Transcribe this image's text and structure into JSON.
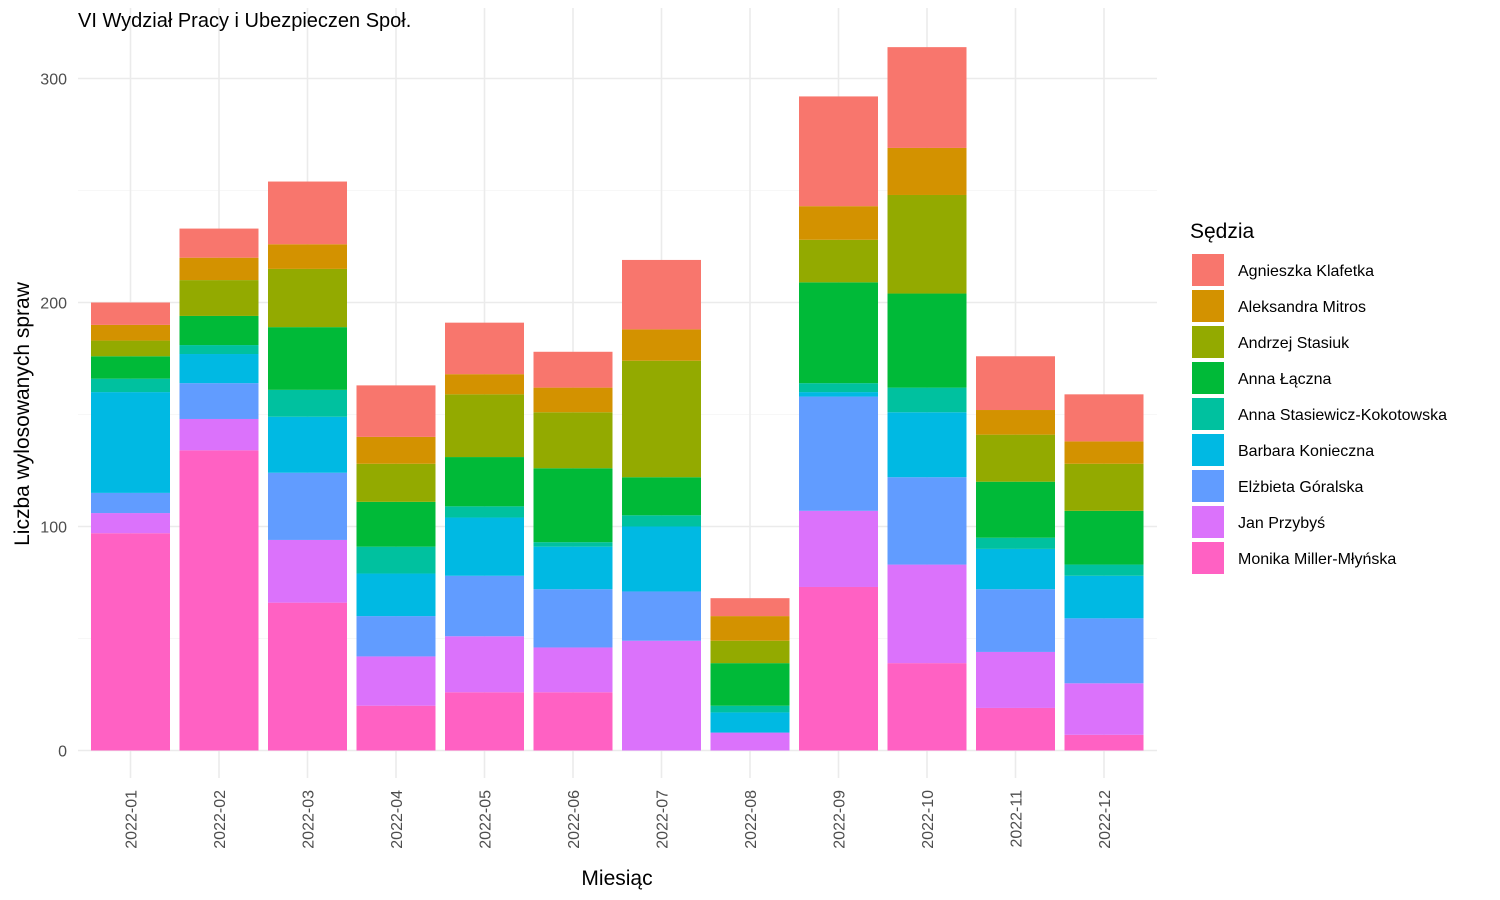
{
  "chart_data": {
    "type": "bar",
    "stacked": true,
    "title": "VI Wydział Pracy i Ubezpieczen Społ.",
    "xlabel": "Miesiąc",
    "ylabel": "Liczba wylosowanych spraw",
    "ylim": [
      0,
      320
    ],
    "yticks": [
      0,
      100,
      200,
      300
    ],
    "grid": true,
    "legend": {
      "title": "Sędzia",
      "position": "right"
    },
    "categories": [
      "2022-01",
      "2022-02",
      "2022-03",
      "2022-04",
      "2022-05",
      "2022-06",
      "2022-07",
      "2022-08",
      "2022-09",
      "2022-10",
      "2022-11",
      "2022-12"
    ],
    "series": [
      {
        "name": "Agnieszka Klafetka",
        "color": "#F8766D",
        "values": [
          10,
          13,
          28,
          23,
          23,
          16,
          31,
          8,
          49,
          45,
          24,
          21
        ]
      },
      {
        "name": "Aleksandra Mitros",
        "color": "#D39200",
        "values": [
          7,
          10,
          11,
          12,
          9,
          11,
          14,
          11,
          15,
          21,
          11,
          10
        ]
      },
      {
        "name": "Andrzej Stasiuk",
        "color": "#93AA00",
        "values": [
          7,
          16,
          26,
          17,
          28,
          25,
          52,
          10,
          19,
          44,
          21,
          21
        ]
      },
      {
        "name": "Anna Łączna",
        "color": "#00BA38",
        "values": [
          10,
          13,
          28,
          20,
          22,
          33,
          17,
          19,
          45,
          42,
          25,
          24
        ]
      },
      {
        "name": "Anna Stasiewicz-Kokotowska",
        "color": "#00C19F",
        "values": [
          6,
          4,
          12,
          12,
          5,
          2,
          5,
          3,
          4,
          11,
          5,
          5
        ]
      },
      {
        "name": "Barbara Konieczna",
        "color": "#00B9E3",
        "values": [
          45,
          13,
          25,
          19,
          26,
          19,
          29,
          9,
          2,
          29,
          18,
          19
        ]
      },
      {
        "name": "Elżbieta Góralska",
        "color": "#619CFF",
        "values": [
          9,
          16,
          30,
          18,
          27,
          26,
          22,
          0,
          51,
          39,
          28,
          29
        ]
      },
      {
        "name": "Jan Przybyś",
        "color": "#DB72FB",
        "values": [
          9,
          14,
          28,
          22,
          25,
          20,
          49,
          8,
          34,
          44,
          25,
          23
        ]
      },
      {
        "name": "Monika Miller-Młyńska",
        "color": "#FF61C3",
        "values": [
          97,
          134,
          66,
          20,
          26,
          26,
          0,
          0,
          73,
          39,
          19,
          7
        ]
      }
    ]
  }
}
